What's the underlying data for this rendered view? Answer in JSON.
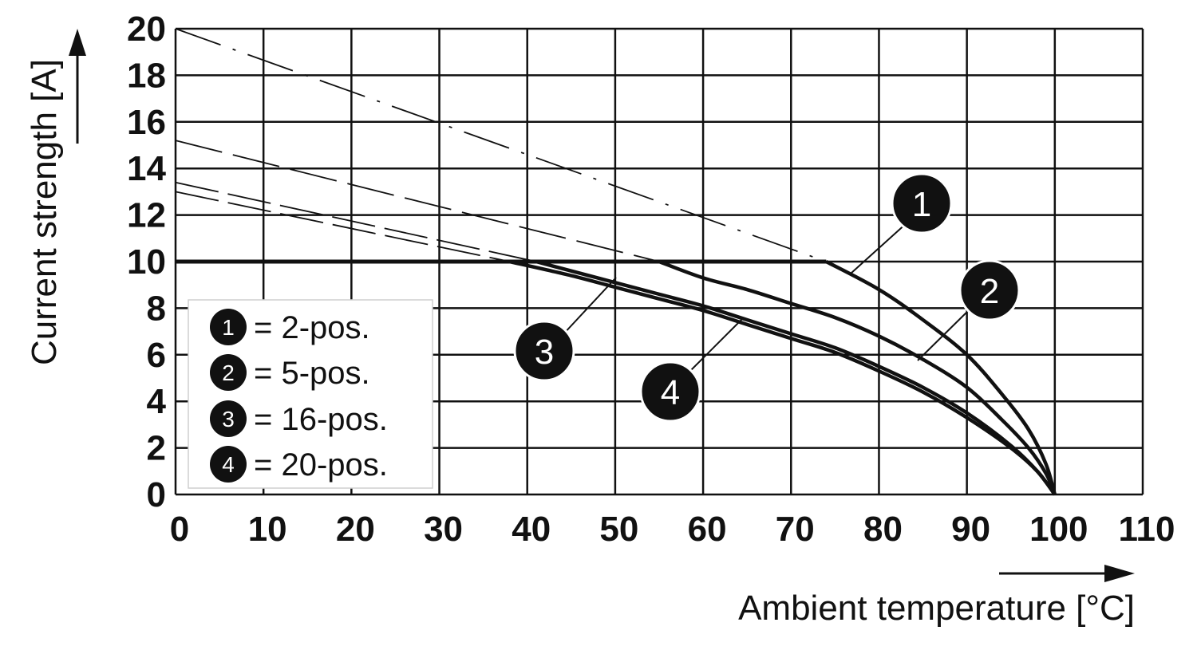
{
  "chart_data": {
    "type": "line",
    "xlabel": "Ambient temperature [°C]",
    "ylabel": "Current strength [A]",
    "xlim": [
      0,
      110
    ],
    "ylim": [
      0,
      20
    ],
    "x_ticks": [
      "0",
      "10",
      "20",
      "30",
      "40",
      "50",
      "60",
      "70",
      "80",
      "90",
      "100",
      "110"
    ],
    "y_ticks": [
      "0",
      "2",
      "4",
      "6",
      "8",
      "10",
      "12",
      "14",
      "16",
      "18",
      "20"
    ],
    "grid": true,
    "legend_position": "bottom-left",
    "legend": [
      {
        "marker": "1",
        "text": "= 2-pos."
      },
      {
        "marker": "2",
        "text": "= 5-pos."
      },
      {
        "marker": "3",
        "text": "= 16-pos."
      },
      {
        "marker": "4",
        "text": "= 20-pos."
      }
    ],
    "limit_line": {
      "y": 10,
      "x": [
        0,
        74
      ]
    },
    "series": [
      {
        "marker": "1",
        "solid": {
          "x": [
            74,
            80,
            85,
            90,
            94,
            97,
            99,
            100
          ],
          "y": [
            10,
            8.8,
            7.5,
            6.0,
            4.3,
            2.8,
            1.3,
            0
          ]
        },
        "dashed": {
          "x": [
            0,
            74
          ],
          "y": [
            20,
            10
          ]
        }
      },
      {
        "marker": "2",
        "solid": {
          "x": [
            55,
            60,
            65,
            70,
            75,
            80,
            85,
            90,
            94,
            97,
            99,
            100
          ],
          "y": [
            10,
            9.3,
            8.8,
            8.2,
            7.6,
            6.8,
            5.8,
            4.6,
            3.2,
            2.0,
            0.9,
            0
          ]
        },
        "dashed": {
          "x": [
            0,
            55
          ],
          "y": [
            15.2,
            10
          ]
        }
      },
      {
        "marker": "3",
        "solid": {
          "x": [
            41,
            45,
            50,
            55,
            60,
            65,
            70,
            75,
            80,
            85,
            90,
            95,
            98,
            100
          ],
          "y": [
            10,
            9.6,
            9.1,
            8.6,
            8.1,
            7.5,
            6.9,
            6.3,
            5.5,
            4.6,
            3.5,
            2.1,
            1.0,
            0
          ]
        },
        "dashed": {
          "x": [
            0,
            41
          ],
          "y": [
            13.4,
            10
          ]
        }
      },
      {
        "marker": "4",
        "solid": {
          "x": [
            38,
            45,
            50,
            55,
            60,
            65,
            70,
            75,
            80,
            85,
            90,
            95,
            98,
            100
          ],
          "y": [
            10,
            9.4,
            8.9,
            8.4,
            7.9,
            7.3,
            6.7,
            6.1,
            5.3,
            4.4,
            3.3,
            2.0,
            1.0,
            0
          ]
        },
        "dashed": {
          "x": [
            0,
            38
          ],
          "y": [
            13.0,
            10
          ]
        }
      }
    ]
  }
}
